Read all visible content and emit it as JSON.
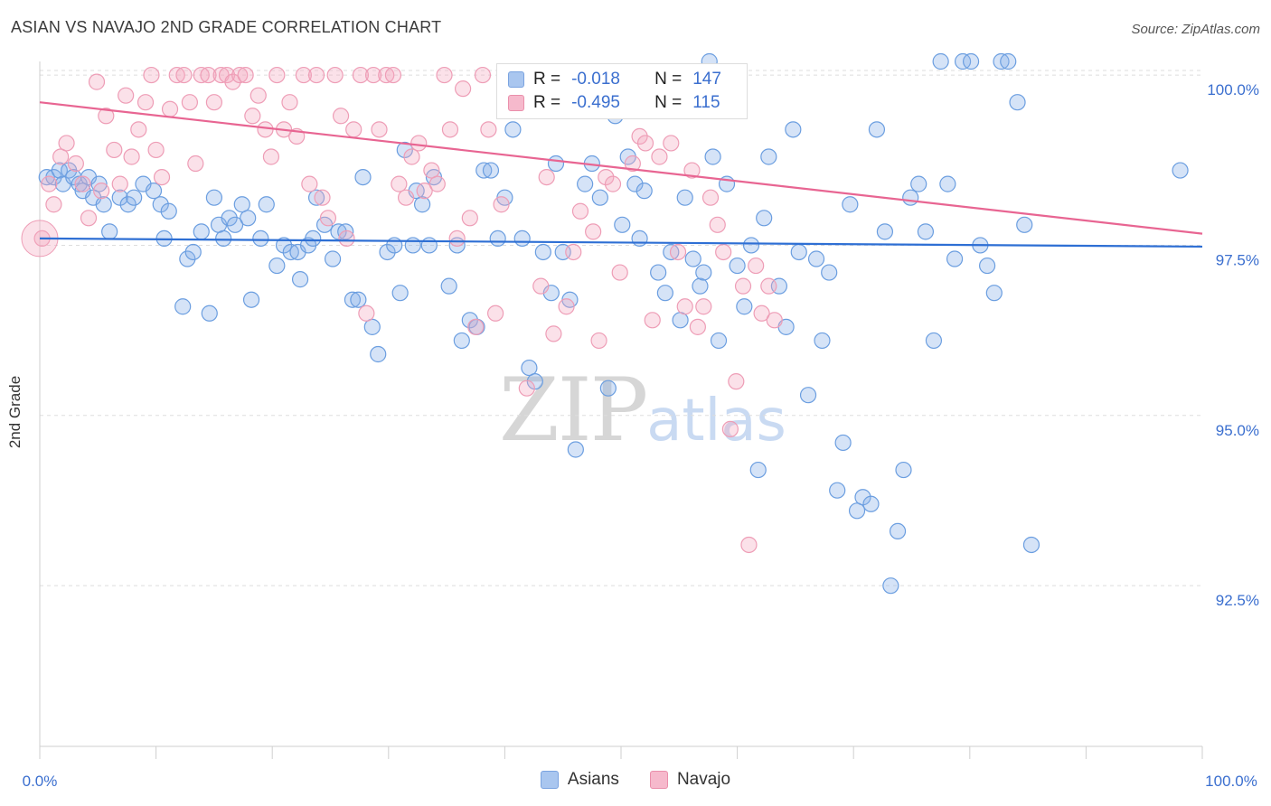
{
  "title": "ASIAN VS NAVAJO 2ND GRADE CORRELATION CHART",
  "source": "Source: ZipAtlas.com",
  "watermark": {
    "zip": "ZIP",
    "atlas": "atlas"
  },
  "legend_top": {
    "rows": [
      {
        "r_label": "R =",
        "r_value": "-0.018",
        "n_label": "N =",
        "n_value": "147",
        "color": "#a9c6ef"
      },
      {
        "r_label": "R =",
        "r_value": "-0.495",
        "n_label": "N =",
        "n_value": "115",
        "color": "#f6b9cc"
      }
    ]
  },
  "legend_bottom": [
    {
      "label": "Asians",
      "color": "#a9c6ef",
      "border": "#7aa3e0"
    },
    {
      "label": "Navajo",
      "color": "#f6b9cc",
      "border": "#ea8fab"
    }
  ],
  "colors": {
    "asian_fill": "rgba(135,175,232,0.35)",
    "asian_stroke": "#6b9ee0",
    "asian_line": "#2e6fd4",
    "navajo_fill": "rgba(244,170,193,0.35)",
    "navajo_stroke": "#ee9db6",
    "navajo_line": "#e86592",
    "tick_label": "#3b6fcf",
    "grid": "#dddddd"
  },
  "chart_data": {
    "type": "scatter",
    "title": "ASIAN VS NAVAJO 2ND GRADE CORRELATION CHART",
    "xlabel": "",
    "ylabel": "2nd Grade",
    "xlim": [
      0,
      100
    ],
    "ylim": [
      90.14,
      100.2
    ],
    "x_tick_labels": [
      "0.0%",
      "100.0%"
    ],
    "y_ticks": [
      {
        "value": 100.0,
        "label": "100.0%"
      },
      {
        "value": 97.5,
        "label": "97.5%"
      },
      {
        "value": 95.0,
        "label": "95.0%"
      },
      {
        "value": 92.5,
        "label": "92.5%"
      }
    ],
    "grid": true,
    "legend_position": "top-center",
    "series": [
      {
        "name": "Asians",
        "trend": {
          "x": [
            0,
            100
          ],
          "y": [
            97.6,
            97.48
          ]
        },
        "points": [
          [
            0.6,
            98.5
          ],
          [
            1.2,
            98.5
          ],
          [
            1.7,
            98.6
          ],
          [
            2.0,
            98.4
          ],
          [
            2.5,
            98.6
          ],
          [
            2.9,
            98.5
          ],
          [
            3.4,
            98.4
          ],
          [
            3.7,
            98.3
          ],
          [
            4.2,
            98.5
          ],
          [
            4.6,
            98.2
          ],
          [
            5.1,
            98.4
          ],
          [
            5.5,
            98.1
          ],
          [
            6.0,
            97.7
          ],
          [
            6.9,
            98.2
          ],
          [
            7.6,
            98.1
          ],
          [
            8.1,
            98.2
          ],
          [
            8.9,
            98.4
          ],
          [
            9.8,
            98.3
          ],
          [
            10.4,
            98.1
          ],
          [
            10.7,
            97.6
          ],
          [
            11.1,
            98.0
          ],
          [
            12.3,
            96.6
          ],
          [
            12.7,
            97.3
          ],
          [
            13.2,
            97.4
          ],
          [
            13.9,
            97.7
          ],
          [
            14.6,
            96.5
          ],
          [
            15.0,
            98.2
          ],
          [
            15.4,
            97.8
          ],
          [
            15.8,
            97.6
          ],
          [
            16.3,
            97.9
          ],
          [
            16.8,
            97.8
          ],
          [
            17.4,
            98.1
          ],
          [
            17.9,
            97.9
          ],
          [
            18.2,
            96.7
          ],
          [
            19.0,
            97.6
          ],
          [
            19.5,
            98.1
          ],
          [
            20.4,
            97.2
          ],
          [
            21.0,
            97.5
          ],
          [
            21.6,
            97.4
          ],
          [
            22.2,
            97.4
          ],
          [
            22.4,
            97.0
          ],
          [
            23.1,
            97.5
          ],
          [
            23.5,
            97.6
          ],
          [
            23.8,
            98.2
          ],
          [
            24.5,
            97.8
          ],
          [
            25.2,
            97.3
          ],
          [
            25.7,
            97.7
          ],
          [
            26.3,
            97.7
          ],
          [
            26.9,
            96.7
          ],
          [
            27.4,
            96.7
          ],
          [
            27.8,
            98.5
          ],
          [
            28.6,
            96.3
          ],
          [
            29.1,
            95.9
          ],
          [
            29.9,
            97.4
          ],
          [
            30.5,
            97.5
          ],
          [
            31.0,
            96.8
          ],
          [
            31.4,
            98.9
          ],
          [
            32.1,
            97.5
          ],
          [
            32.4,
            98.3
          ],
          [
            32.9,
            98.1
          ],
          [
            33.5,
            97.5
          ],
          [
            33.9,
            98.5
          ],
          [
            35.2,
            96.9
          ],
          [
            35.9,
            97.5
          ],
          [
            36.3,
            96.1
          ],
          [
            37.0,
            96.4
          ],
          [
            37.6,
            96.3
          ],
          [
            38.2,
            98.6
          ],
          [
            38.8,
            98.6
          ],
          [
            39.4,
            97.6
          ],
          [
            40.0,
            98.2
          ],
          [
            40.7,
            99.2
          ],
          [
            41.5,
            97.6
          ],
          [
            42.1,
            95.7
          ],
          [
            42.6,
            95.5
          ],
          [
            43.3,
            97.4
          ],
          [
            44.0,
            96.8
          ],
          [
            44.4,
            98.7
          ],
          [
            45.0,
            97.4
          ],
          [
            45.6,
            96.7
          ],
          [
            46.1,
            94.5
          ],
          [
            46.9,
            98.4
          ],
          [
            47.5,
            98.7
          ],
          [
            48.2,
            98.2
          ],
          [
            48.9,
            95.4
          ],
          [
            49.5,
            99.4
          ],
          [
            50.1,
            97.8
          ],
          [
            50.6,
            98.8
          ],
          [
            51.2,
            98.4
          ],
          [
            51.6,
            97.6
          ],
          [
            52.0,
            98.3
          ],
          [
            52.6,
            99.8
          ],
          [
            53.2,
            97.1
          ],
          [
            53.8,
            96.8
          ],
          [
            54.3,
            97.4
          ],
          [
            55.1,
            96.4
          ],
          [
            55.5,
            98.2
          ],
          [
            56.2,
            97.3
          ],
          [
            56.8,
            96.9
          ],
          [
            57.1,
            97.1
          ],
          [
            57.6,
            100.2
          ],
          [
            57.9,
            98.8
          ],
          [
            58.4,
            96.1
          ],
          [
            59.1,
            98.4
          ],
          [
            60.0,
            97.2
          ],
          [
            60.6,
            96.6
          ],
          [
            61.2,
            97.5
          ],
          [
            61.8,
            94.2
          ],
          [
            62.3,
            97.9
          ],
          [
            62.7,
            98.8
          ],
          [
            63.6,
            96.9
          ],
          [
            64.2,
            96.3
          ],
          [
            64.8,
            99.2
          ],
          [
            65.3,
            97.4
          ],
          [
            66.1,
            95.3
          ],
          [
            66.8,
            97.3
          ],
          [
            67.3,
            96.1
          ],
          [
            67.9,
            97.1
          ],
          [
            68.6,
            93.9
          ],
          [
            69.1,
            94.6
          ],
          [
            69.7,
            98.1
          ],
          [
            70.3,
            93.6
          ],
          [
            70.8,
            93.8
          ],
          [
            71.5,
            93.7
          ],
          [
            72.0,
            99.2
          ],
          [
            72.7,
            97.7
          ],
          [
            73.2,
            92.5
          ],
          [
            73.8,
            93.3
          ],
          [
            74.3,
            94.2
          ],
          [
            74.9,
            98.2
          ],
          [
            75.6,
            98.4
          ],
          [
            76.2,
            97.7
          ],
          [
            76.9,
            96.1
          ],
          [
            77.5,
            100.2
          ],
          [
            78.1,
            98.4
          ],
          [
            78.7,
            97.3
          ],
          [
            79.4,
            100.2
          ],
          [
            80.1,
            100.2
          ],
          [
            80.9,
            97.5
          ],
          [
            81.5,
            97.2
          ],
          [
            82.1,
            96.8
          ],
          [
            82.7,
            100.2
          ],
          [
            83.3,
            100.2
          ],
          [
            84.1,
            99.6
          ],
          [
            84.7,
            97.8
          ],
          [
            85.3,
            93.1
          ],
          [
            98.1,
            98.6
          ]
        ]
      },
      {
        "name": "Navajo",
        "trend": {
          "x": [
            0,
            100
          ],
          "y": [
            99.6,
            97.67
          ]
        },
        "points": [
          [
            0.2,
            97.6
          ],
          [
            0.8,
            98.4
          ],
          [
            1.2,
            98.1
          ],
          [
            1.8,
            98.8
          ],
          [
            2.3,
            99.0
          ],
          [
            3.1,
            98.7
          ],
          [
            3.7,
            98.4
          ],
          [
            4.2,
            97.9
          ],
          [
            4.9,
            99.9
          ],
          [
            5.3,
            98.3
          ],
          [
            5.7,
            99.4
          ],
          [
            6.4,
            98.9
          ],
          [
            6.9,
            98.4
          ],
          [
            7.4,
            99.7
          ],
          [
            7.9,
            98.8
          ],
          [
            8.5,
            99.2
          ],
          [
            9.1,
            99.6
          ],
          [
            9.6,
            100.0
          ],
          [
            10.0,
            98.9
          ],
          [
            10.5,
            98.5
          ],
          [
            11.2,
            99.5
          ],
          [
            11.8,
            100.0
          ],
          [
            12.4,
            100.0
          ],
          [
            12.9,
            99.6
          ],
          [
            13.4,
            98.7
          ],
          [
            13.9,
            100.0
          ],
          [
            14.5,
            100.0
          ],
          [
            15.0,
            99.6
          ],
          [
            15.6,
            100.0
          ],
          [
            16.1,
            100.0
          ],
          [
            16.6,
            99.9
          ],
          [
            17.2,
            100.0
          ],
          [
            17.7,
            100.0
          ],
          [
            18.3,
            99.4
          ],
          [
            18.8,
            99.7
          ],
          [
            19.4,
            99.2
          ],
          [
            19.9,
            98.8
          ],
          [
            20.4,
            100.0
          ],
          [
            21.0,
            99.2
          ],
          [
            21.5,
            99.6
          ],
          [
            22.1,
            99.1
          ],
          [
            22.7,
            100.0
          ],
          [
            23.2,
            98.4
          ],
          [
            23.8,
            100.0
          ],
          [
            24.3,
            98.2
          ],
          [
            24.8,
            97.9
          ],
          [
            25.4,
            100.0
          ],
          [
            25.9,
            99.4
          ],
          [
            26.4,
            97.6
          ],
          [
            27.0,
            99.2
          ],
          [
            27.6,
            100.0
          ],
          [
            28.1,
            96.5
          ],
          [
            28.7,
            100.0
          ],
          [
            29.2,
            99.2
          ],
          [
            29.8,
            100.0
          ],
          [
            30.4,
            100.0
          ],
          [
            30.9,
            98.4
          ],
          [
            31.5,
            98.2
          ],
          [
            32.0,
            98.8
          ],
          [
            32.6,
            99.0
          ],
          [
            33.1,
            98.3
          ],
          [
            33.7,
            98.6
          ],
          [
            34.2,
            98.4
          ],
          [
            34.8,
            100.0
          ],
          [
            35.3,
            99.2
          ],
          [
            35.9,
            97.6
          ],
          [
            36.4,
            99.8
          ],
          [
            37.0,
            97.9
          ],
          [
            37.5,
            96.3
          ],
          [
            38.1,
            100.0
          ],
          [
            38.6,
            99.2
          ],
          [
            39.2,
            96.5
          ],
          [
            39.7,
            98.1
          ],
          [
            40.3,
            99.5
          ],
          [
            40.9,
            100.0
          ],
          [
            41.4,
            100.0
          ],
          [
            41.9,
            95.4
          ],
          [
            42.5,
            100.0
          ],
          [
            43.1,
            96.9
          ],
          [
            43.6,
            98.5
          ],
          [
            44.2,
            96.2
          ],
          [
            44.8,
            99.6
          ],
          [
            45.3,
            96.6
          ],
          [
            45.9,
            97.4
          ],
          [
            46.5,
            98.0
          ],
          [
            47.0,
            100.0
          ],
          [
            47.6,
            97.7
          ],
          [
            48.1,
            96.1
          ],
          [
            48.7,
            98.5
          ],
          [
            49.3,
            98.4
          ],
          [
            49.9,
            97.1
          ],
          [
            50.4,
            100.0
          ],
          [
            51.0,
            98.7
          ],
          [
            51.6,
            99.1
          ],
          [
            52.1,
            99.0
          ],
          [
            52.7,
            96.4
          ],
          [
            53.3,
            98.8
          ],
          [
            53.8,
            99.6
          ],
          [
            54.3,
            99.0
          ],
          [
            54.9,
            97.4
          ],
          [
            55.5,
            96.6
          ],
          [
            56.1,
            98.6
          ],
          [
            56.6,
            96.3
          ],
          [
            57.1,
            96.6
          ],
          [
            57.7,
            98.2
          ],
          [
            58.3,
            97.8
          ],
          [
            58.8,
            97.4
          ],
          [
            59.4,
            94.8
          ],
          [
            59.9,
            95.5
          ],
          [
            60.5,
            96.9
          ],
          [
            61.0,
            93.1
          ],
          [
            61.6,
            97.2
          ],
          [
            62.1,
            96.5
          ],
          [
            62.7,
            96.9
          ],
          [
            63.2,
            96.4
          ]
        ]
      }
    ]
  }
}
